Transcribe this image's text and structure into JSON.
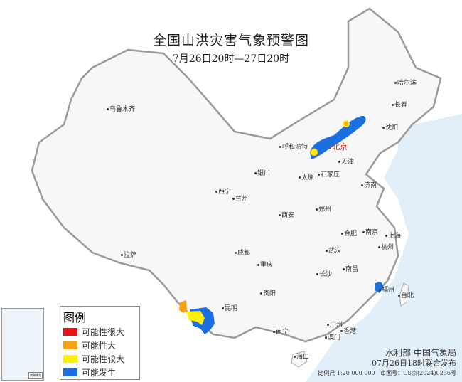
{
  "title": "全国山洪灾害气象预警图",
  "subtitle": "7月26日20时—27日20时",
  "legend": {
    "title": "图例",
    "items": [
      {
        "label": "可能性很大",
        "color": "#e8141a"
      },
      {
        "label": "可能性大",
        "color": "#f5a312"
      },
      {
        "label": "可能性较大",
        "color": "#fff200"
      },
      {
        "label": "可能发生",
        "color": "#1c6fe0"
      }
    ]
  },
  "cities": [
    "乌鲁木齐",
    "哈尔滨",
    "长春",
    "沈阳",
    "呼和浩特",
    "北京",
    "天津",
    "银川",
    "太原",
    "石家庄",
    "西宁",
    "兰州",
    "济南",
    "郑州",
    "西安",
    "合肥",
    "南京",
    "上海",
    "拉萨",
    "成都",
    "武汉",
    "杭州",
    "重庆",
    "长沙",
    "南昌",
    "福州",
    "台北",
    "贵阳",
    "昆明",
    "南宁",
    "广州",
    "香港",
    "澳门",
    "海口"
  ],
  "inset_label": "南海诸岛",
  "credits": {
    "issuer": "水利部  中国气象局",
    "issued": "07月26日18时联合发布",
    "scale": "比例尺 1:20 000 000",
    "map_no": "审图号：GS京(2024)0236号"
  }
}
